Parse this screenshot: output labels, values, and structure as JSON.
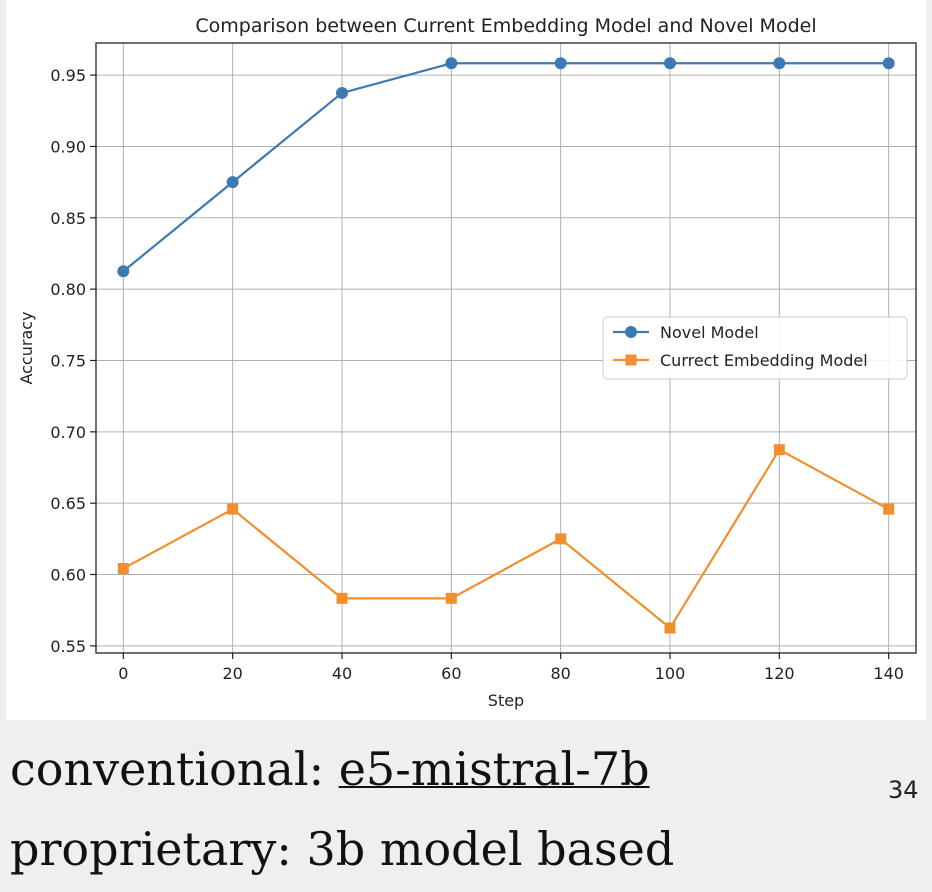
{
  "chart_data": {
    "type": "line",
    "title": "Comparison between Current Embedding Model and Novel Model",
    "xlabel": "Step",
    "ylabel": "Accuracy",
    "x": [
      0,
      20,
      40,
      60,
      80,
      100,
      120,
      140
    ],
    "xticks": [
      0,
      20,
      40,
      60,
      80,
      100,
      120,
      140
    ],
    "yticks": [
      0.55,
      0.6,
      0.65,
      0.7,
      0.75,
      0.8,
      0.85,
      0.9,
      0.95
    ],
    "xlim": [
      -5,
      145
    ],
    "ylim": [
      0.545,
      0.9725
    ],
    "grid": true,
    "legend_position": "center-right",
    "series": [
      {
        "name": "Novel Model",
        "color": "#3d7ab3",
        "marker": "circle",
        "values": [
          0.8125,
          0.875,
          0.9375,
          0.9583,
          0.9583,
          0.9583,
          0.9583,
          0.9583
        ]
      },
      {
        "name": "Currect Embedding Model",
        "color": "#f28e2b",
        "marker": "square",
        "values": [
          0.6042,
          0.6458,
          0.5833,
          0.5833,
          0.625,
          0.5625,
          0.6875,
          0.6458
        ]
      }
    ]
  },
  "caption": {
    "line1_prefix": "conventional: ",
    "line1_link": "e5-mistral-7b",
    "line2": "proprietary: 3b model based"
  },
  "page_number": "34"
}
